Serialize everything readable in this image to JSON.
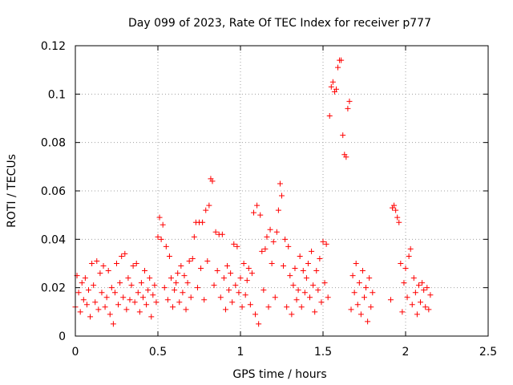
{
  "chart_data": {
    "type": "scatter",
    "title": "Day 099 of 2023, Rate Of TEC Index for receiver p777",
    "xlabel": "GPS time / hours",
    "ylabel": "ROTI / TECUs",
    "xlim": [
      0,
      2.5
    ],
    "ylim": [
      0,
      0.12
    ],
    "xticks": [
      0,
      0.5,
      1,
      1.5,
      2,
      2.5
    ],
    "xtick_labels": [
      "0",
      "0.5",
      "1",
      "1.5",
      "2",
      "2.5"
    ],
    "yticks": [
      0,
      0.02,
      0.04,
      0.06,
      0.08,
      0.1,
      0.12
    ],
    "ytick_labels": [
      "0",
      "0.02",
      "0.04",
      "0.06",
      "0.08",
      "0.1",
      "0.12"
    ],
    "grid": true,
    "marker": "+",
    "color": "#ff0000",
    "series": [
      {
        "name": "ROTI",
        "points": [
          [
            0.0,
            0.012
          ],
          [
            0.01,
            0.025
          ],
          [
            0.02,
            0.018
          ],
          [
            0.03,
            0.01
          ],
          [
            0.04,
            0.022
          ],
          [
            0.05,
            0.015
          ],
          [
            0.06,
            0.024
          ],
          [
            0.07,
            0.013
          ],
          [
            0.08,
            0.019
          ],
          [
            0.09,
            0.008
          ],
          [
            0.1,
            0.03
          ],
          [
            0.11,
            0.021
          ],
          [
            0.12,
            0.014
          ],
          [
            0.13,
            0.031
          ],
          [
            0.14,
            0.011
          ],
          [
            0.15,
            0.026
          ],
          [
            0.16,
            0.018
          ],
          [
            0.17,
            0.029
          ],
          [
            0.18,
            0.012
          ],
          [
            0.19,
            0.016
          ],
          [
            0.2,
            0.027
          ],
          [
            0.21,
            0.009
          ],
          [
            0.22,
            0.02
          ],
          [
            0.23,
            0.005
          ],
          [
            0.24,
            0.018
          ],
          [
            0.25,
            0.03
          ],
          [
            0.26,
            0.013
          ],
          [
            0.27,
            0.022
          ],
          [
            0.28,
            0.033
          ],
          [
            0.29,
            0.016
          ],
          [
            0.3,
            0.034
          ],
          [
            0.31,
            0.011
          ],
          [
            0.32,
            0.024
          ],
          [
            0.33,
            0.015
          ],
          [
            0.34,
            0.021
          ],
          [
            0.35,
            0.029
          ],
          [
            0.36,
            0.014
          ],
          [
            0.37,
            0.03
          ],
          [
            0.38,
            0.018
          ],
          [
            0.39,
            0.01
          ],
          [
            0.4,
            0.022
          ],
          [
            0.41,
            0.016
          ],
          [
            0.42,
            0.027
          ],
          [
            0.43,
            0.013
          ],
          [
            0.44,
            0.019
          ],
          [
            0.45,
            0.024
          ],
          [
            0.46,
            0.008
          ],
          [
            0.47,
            0.017
          ],
          [
            0.48,
            0.021
          ],
          [
            0.49,
            0.014
          ],
          [
            0.5,
            0.041
          ],
          [
            0.51,
            0.049
          ],
          [
            0.52,
            0.04
          ],
          [
            0.53,
            0.046
          ],
          [
            0.54,
            0.02
          ],
          [
            0.55,
            0.037
          ],
          [
            0.56,
            0.015
          ],
          [
            0.57,
            0.033
          ],
          [
            0.58,
            0.024
          ],
          [
            0.59,
            0.012
          ],
          [
            0.6,
            0.019
          ],
          [
            0.61,
            0.022
          ],
          [
            0.62,
            0.026
          ],
          [
            0.63,
            0.014
          ],
          [
            0.64,
            0.029
          ],
          [
            0.65,
            0.018
          ],
          [
            0.66,
            0.025
          ],
          [
            0.67,
            0.011
          ],
          [
            0.68,
            0.022
          ],
          [
            0.69,
            0.031
          ],
          [
            0.7,
            0.016
          ],
          [
            0.71,
            0.032
          ],
          [
            0.72,
            0.041
          ],
          [
            0.73,
            0.047
          ],
          [
            0.74,
            0.02
          ],
          [
            0.75,
            0.047
          ],
          [
            0.76,
            0.028
          ],
          [
            0.77,
            0.047
          ],
          [
            0.78,
            0.015
          ],
          [
            0.79,
            0.052
          ],
          [
            0.8,
            0.031
          ],
          [
            0.81,
            0.054
          ],
          [
            0.82,
            0.065
          ],
          [
            0.83,
            0.064
          ],
          [
            0.84,
            0.021
          ],
          [
            0.85,
            0.043
          ],
          [
            0.86,
            0.027
          ],
          [
            0.87,
            0.042
          ],
          [
            0.88,
            0.016
          ],
          [
            0.89,
            0.042
          ],
          [
            0.9,
            0.024
          ],
          [
            0.91,
            0.011
          ],
          [
            0.92,
            0.029
          ],
          [
            0.93,
            0.019
          ],
          [
            0.94,
            0.026
          ],
          [
            0.95,
            0.014
          ],
          [
            0.96,
            0.038
          ],
          [
            0.97,
            0.021
          ],
          [
            0.98,
            0.037
          ],
          [
            0.99,
            0.018
          ],
          [
            1.0,
            0.024
          ],
          [
            1.01,
            0.012
          ],
          [
            1.02,
            0.03
          ],
          [
            1.03,
            0.017
          ],
          [
            1.04,
            0.023
          ],
          [
            1.05,
            0.028
          ],
          [
            1.06,
            0.013
          ],
          [
            1.07,
            0.026
          ],
          [
            1.08,
            0.051
          ],
          [
            1.09,
            0.009
          ],
          [
            1.1,
            0.054
          ],
          [
            1.11,
            0.005
          ],
          [
            1.12,
            0.05
          ],
          [
            1.13,
            0.035
          ],
          [
            1.14,
            0.019
          ],
          [
            1.15,
            0.036
          ],
          [
            1.16,
            0.041
          ],
          [
            1.17,
            0.012
          ],
          [
            1.18,
            0.044
          ],
          [
            1.19,
            0.03
          ],
          [
            1.2,
            0.039
          ],
          [
            1.21,
            0.016
          ],
          [
            1.22,
            0.043
          ],
          [
            1.23,
            0.052
          ],
          [
            1.24,
            0.063
          ],
          [
            1.25,
            0.058
          ],
          [
            1.26,
            0.029
          ],
          [
            1.27,
            0.04
          ],
          [
            1.28,
            0.012
          ],
          [
            1.29,
            0.037
          ],
          [
            1.3,
            0.025
          ],
          [
            1.31,
            0.009
          ],
          [
            1.32,
            0.021
          ],
          [
            1.33,
            0.028
          ],
          [
            1.34,
            0.015
          ],
          [
            1.35,
            0.019
          ],
          [
            1.36,
            0.033
          ],
          [
            1.37,
            0.012
          ],
          [
            1.38,
            0.027
          ],
          [
            1.39,
            0.018
          ],
          [
            1.4,
            0.024
          ],
          [
            1.41,
            0.03
          ],
          [
            1.42,
            0.016
          ],
          [
            1.43,
            0.035
          ],
          [
            1.44,
            0.021
          ],
          [
            1.45,
            0.01
          ],
          [
            1.46,
            0.027
          ],
          [
            1.47,
            0.019
          ],
          [
            1.48,
            0.032
          ],
          [
            1.49,
            0.014
          ],
          [
            1.5,
            0.039
          ],
          [
            1.51,
            0.022
          ],
          [
            1.52,
            0.038
          ],
          [
            1.53,
            0.016
          ],
          [
            1.54,
            0.091
          ],
          [
            1.55,
            0.103
          ],
          [
            1.56,
            0.105
          ],
          [
            1.57,
            0.101
          ],
          [
            1.58,
            0.102
          ],
          [
            1.59,
            0.111
          ],
          [
            1.6,
            0.114
          ],
          [
            1.61,
            0.114
          ],
          [
            1.62,
            0.083
          ],
          [
            1.63,
            0.075
          ],
          [
            1.64,
            0.074
          ],
          [
            1.65,
            0.094
          ],
          [
            1.66,
            0.097
          ],
          [
            1.67,
            0.011
          ],
          [
            1.68,
            0.025
          ],
          [
            1.69,
            0.018
          ],
          [
            1.7,
            0.03
          ],
          [
            1.71,
            0.013
          ],
          [
            1.72,
            0.022
          ],
          [
            1.73,
            0.009
          ],
          [
            1.74,
            0.027
          ],
          [
            1.75,
            0.016
          ],
          [
            1.76,
            0.02
          ],
          [
            1.77,
            0.006
          ],
          [
            1.78,
            0.024
          ],
          [
            1.79,
            0.012
          ],
          [
            1.8,
            0.018
          ],
          [
            1.91,
            0.015
          ],
          [
            1.92,
            0.053
          ],
          [
            1.93,
            0.054
          ],
          [
            1.94,
            0.052
          ],
          [
            1.95,
            0.049
          ],
          [
            1.96,
            0.047
          ],
          [
            1.97,
            0.03
          ],
          [
            1.98,
            0.01
          ],
          [
            1.99,
            0.022
          ],
          [
            2.0,
            0.028
          ],
          [
            2.01,
            0.016
          ],
          [
            2.02,
            0.033
          ],
          [
            2.03,
            0.036
          ],
          [
            2.04,
            0.013
          ],
          [
            2.05,
            0.024
          ],
          [
            2.06,
            0.018
          ],
          [
            2.07,
            0.009
          ],
          [
            2.08,
            0.021
          ],
          [
            2.09,
            0.014
          ],
          [
            2.1,
            0.022
          ],
          [
            2.11,
            0.019
          ],
          [
            2.12,
            0.012
          ],
          [
            2.13,
            0.02
          ],
          [
            2.14,
            0.011
          ],
          [
            2.15,
            0.017
          ]
        ]
      }
    ]
  }
}
